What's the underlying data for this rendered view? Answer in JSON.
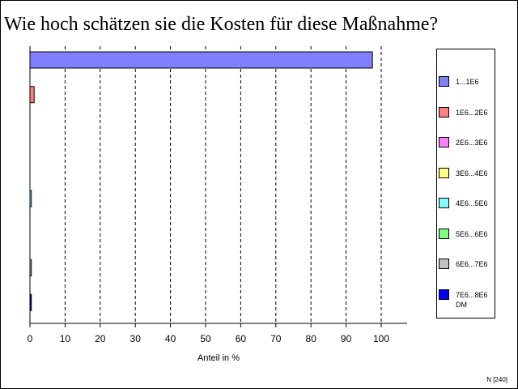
{
  "chart_data": {
    "type": "bar",
    "orientation": "horizontal",
    "title": "Wie hoch schätzen sie die Kosten für diese Maßnahme?",
    "xlabel": "Anteil in %",
    "ylabel": "",
    "xlim": [
      0,
      100
    ],
    "x_ticks": [
      0,
      10,
      20,
      30,
      40,
      50,
      60,
      70,
      80,
      90,
      100
    ],
    "grid": "vertical dashed",
    "legend_placement": "right",
    "series": [
      {
        "name": "1...1E6",
        "value": 97.5,
        "color": "#8080ff"
      },
      {
        "name": "1E6...2E6",
        "value": 1.2,
        "color": "#ff8080"
      },
      {
        "name": "2E6...3E6",
        "value": 0.0,
        "color": "#ff80ff"
      },
      {
        "name": "3E6...4E6",
        "value": 0.0,
        "color": "#ffff80"
      },
      {
        "name": "4E6...5E6",
        "value": 0.4,
        "color": "#80ffff"
      },
      {
        "name": "5E6...6E6",
        "value": 0.0,
        "color": "#80ff80"
      },
      {
        "name": "6E6...7E6",
        "value": 0.4,
        "color": "#c0c0c0"
      },
      {
        "name": "7E6...8E6 DM",
        "value": 0.4,
        "color": "#0000ff"
      }
    ],
    "sample_size": "N [240]"
  }
}
